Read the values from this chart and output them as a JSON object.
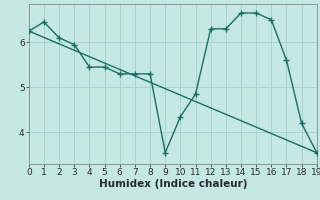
{
  "title": "",
  "xlabel": "Humidex (Indice chaleur)",
  "ylabel": "",
  "background_color": "#c5e8e4",
  "grid_color": "#a8d4cf",
  "line_color": "#1a6e63",
  "line1_x": [
    0,
    1,
    2,
    3,
    4,
    5,
    6,
    7,
    8,
    9,
    10,
    11,
    12,
    13,
    14,
    15,
    16,
    17,
    18,
    19
  ],
  "line1_y": [
    6.25,
    6.45,
    6.1,
    5.95,
    5.45,
    5.45,
    5.3,
    5.3,
    5.3,
    3.55,
    4.35,
    4.85,
    6.3,
    6.3,
    6.65,
    6.65,
    6.5,
    5.6,
    4.2,
    3.55
  ],
  "line2_x": [
    0,
    19
  ],
  "line2_y": [
    6.25,
    3.55
  ],
  "xlim": [
    0,
    19
  ],
  "ylim": [
    3.3,
    6.85
  ],
  "yticks": [
    4,
    5,
    6
  ],
  "xticks": [
    0,
    1,
    2,
    3,
    4,
    5,
    6,
    7,
    8,
    9,
    10,
    11,
    12,
    13,
    14,
    15,
    16,
    17,
    18,
    19
  ],
  "marker": "+",
  "markersize": 4,
  "linewidth": 1.0,
  "tick_fontsize": 6.5,
  "xlabel_fontsize": 7.5
}
